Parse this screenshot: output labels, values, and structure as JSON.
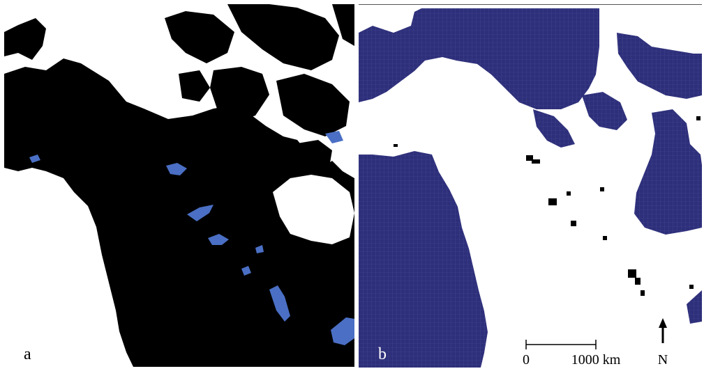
{
  "panels": {
    "a": {
      "label": "a"
    },
    "b": {
      "label": "b"
    }
  },
  "scale_bar": {
    "start_label": "0",
    "end_label": "1000 km"
  },
  "north_arrow": {
    "label": "N",
    "icon": "north-arrow-icon"
  },
  "colors": {
    "land_dark": "#000000",
    "water_light": "#ffffff",
    "lakes": "#4a6fc4",
    "grid_ocean": "#2e2f7a",
    "grid_line": "#4a4c95"
  }
}
